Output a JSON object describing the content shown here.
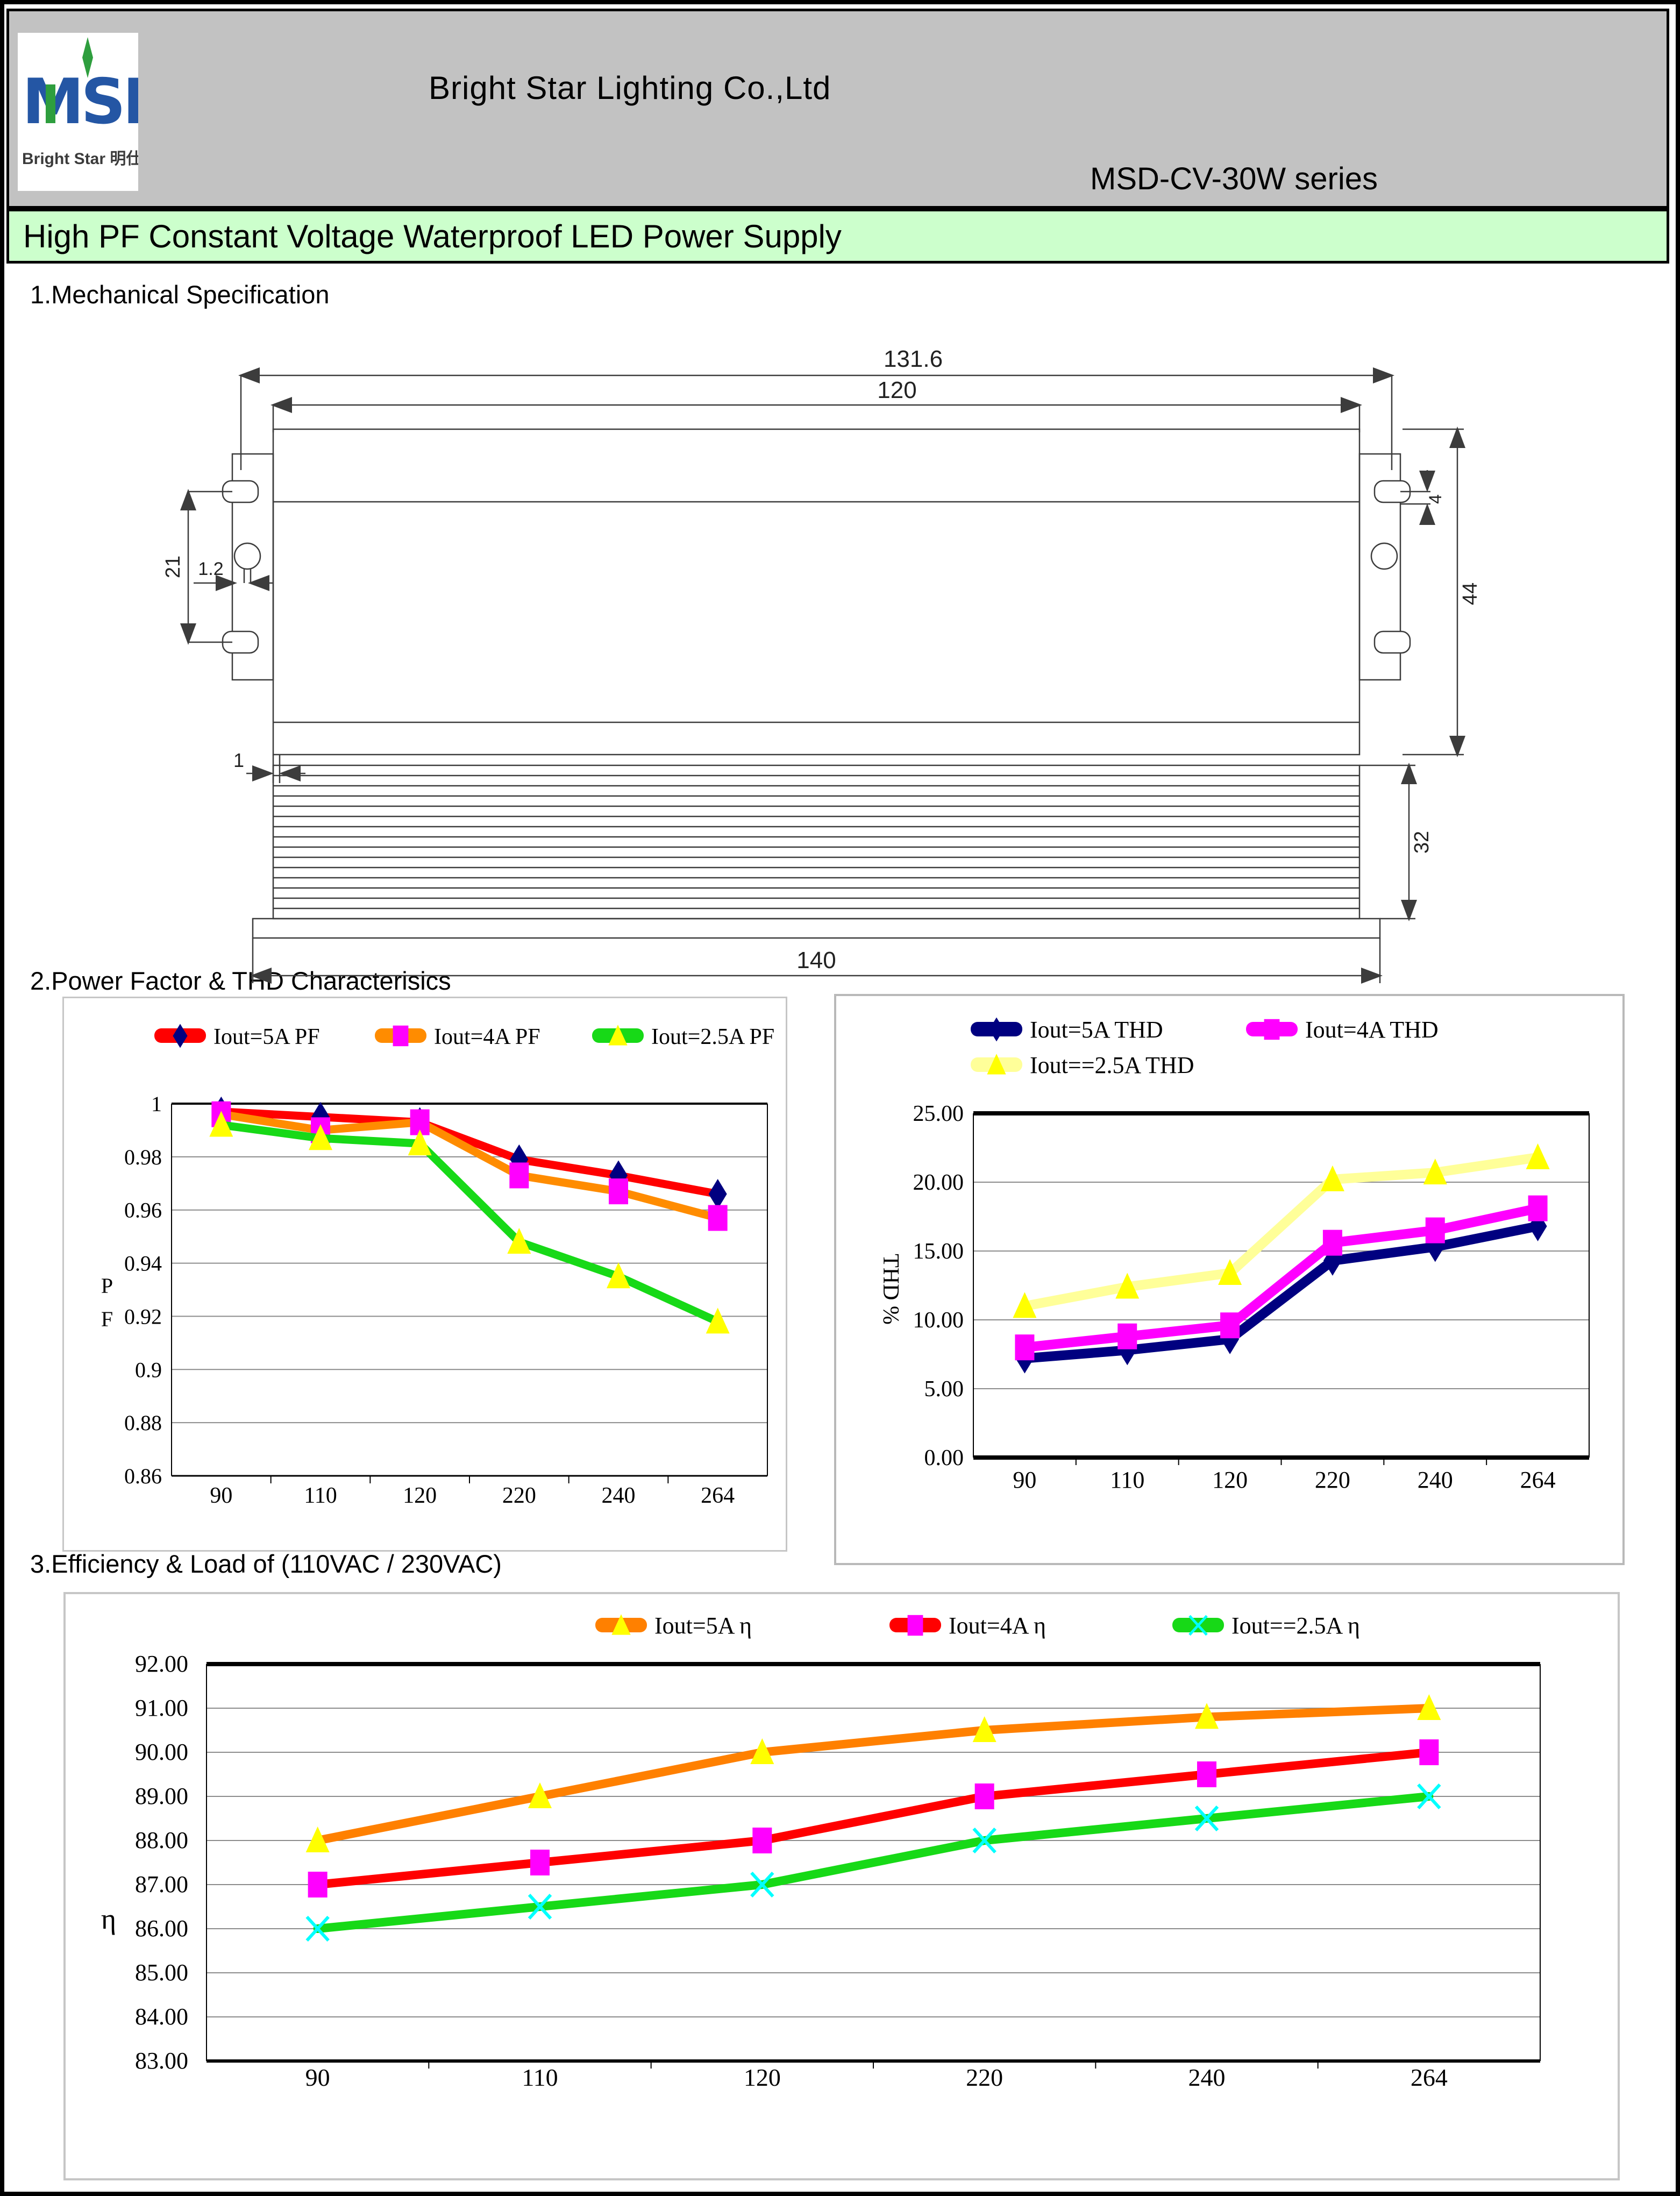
{
  "header": {
    "logo": {
      "msd": "MSD",
      "subtitle": "Bright Star 明仕达"
    },
    "company": "Bright Star Lighting Co.,Ltd",
    "series": "MSD-CV-30W series"
  },
  "banner": {
    "title": "High PF Constant Voltage Waterproof LED Power Supply"
  },
  "sections": {
    "mechanical": "1.Mechanical Specification",
    "pf_thd": "2.Power Factor & THD Characterisics",
    "efficiency": "3.Efficiency & Load of (110VAC / 230VAC)"
  },
  "drawing": {
    "dims": {
      "overall_length": "131.6",
      "body_length": "120",
      "bracket_pitch": "21",
      "slot_width": "1.2",
      "end_gap": "1",
      "hole_offset": "4",
      "unit_width": "44",
      "base_length": "140",
      "unit_height": "32"
    }
  },
  "chart_data": [
    {
      "id": "pf",
      "type": "line",
      "title": "",
      "xlabel": "",
      "ylabel": "P F",
      "categories": [
        "90",
        "110",
        "120",
        "220",
        "240",
        "264"
      ],
      "ylim": [
        0.86,
        1.0
      ],
      "yticks": [
        "1",
        "0.98",
        "0.96",
        "0.94",
        "0.92",
        "0.9",
        "0.88",
        "0.86"
      ],
      "grid": true,
      "legend_position": "top",
      "series": [
        {
          "name": "Iout=5A PF",
          "line_color": "#ff0000",
          "marker": "diamond",
          "marker_color": "#000080",
          "values": [
            0.997,
            0.995,
            0.993,
            0.979,
            0.973,
            0.966
          ]
        },
        {
          "name": "Iout=4A PF",
          "line_color": "#ff8c00",
          "marker": "square",
          "marker_color": "#ff00ff",
          "values": [
            0.996,
            0.99,
            0.993,
            0.973,
            0.967,
            0.957
          ]
        },
        {
          "name": "Iout=2.5A PF",
          "line_color": "#17d917",
          "marker": "triangle",
          "marker_color": "#ffff00",
          "values": [
            0.992,
            0.987,
            0.985,
            0.948,
            0.935,
            0.918
          ]
        }
      ]
    },
    {
      "id": "thd",
      "type": "line",
      "title": "",
      "xlabel": "",
      "ylabel": "THD %",
      "categories": [
        "90",
        "110",
        "120",
        "220",
        "240",
        "264"
      ],
      "ylim": [
        0,
        25
      ],
      "yticks": [
        "25.00",
        "20.00",
        "15.00",
        "10.00",
        "5.00",
        "0.00"
      ],
      "grid": true,
      "legend_position": "top",
      "series": [
        {
          "name": "Iout=5A THD",
          "line_color": "#000080",
          "marker": "diamond",
          "marker_color": "#000080",
          "values": [
            7.2,
            7.8,
            8.6,
            14.3,
            15.3,
            16.8
          ]
        },
        {
          "name": "Iout=4A THD",
          "line_color": "#ff00ff",
          "marker": "square",
          "marker_color": "#ff00ff",
          "values": [
            8.0,
            8.8,
            9.6,
            15.6,
            16.5,
            18.1
          ]
        },
        {
          "name": "Iout==2.5A THD",
          "line_color": "#ffff99",
          "marker": "triangle",
          "marker_color": "#ffff00",
          "values": [
            11.0,
            12.4,
            13.4,
            20.2,
            20.7,
            21.8
          ]
        }
      ]
    },
    {
      "id": "eff",
      "type": "line",
      "title": "",
      "xlabel": "",
      "ylabel": "η",
      "categories": [
        "90",
        "110",
        "120",
        "220",
        "240",
        "264"
      ],
      "ylim": [
        83,
        92
      ],
      "yticks": [
        "92.00",
        "91.00",
        "90.00",
        "89.00",
        "88.00",
        "87.00",
        "86.00",
        "85.00",
        "84.00",
        "83.00"
      ],
      "grid": true,
      "legend_position": "top",
      "series": [
        {
          "name": "Iout=5A η",
          "line_color": "#ff8000",
          "marker": "triangle",
          "marker_color": "#ffff00",
          "values": [
            88.0,
            89.0,
            90.0,
            90.5,
            90.8,
            91.0
          ]
        },
        {
          "name": "Iout=4A η",
          "line_color": "#ff0000",
          "marker": "square",
          "marker_color": "#ff00ff",
          "values": [
            87.0,
            87.5,
            88.0,
            89.0,
            89.5,
            90.0
          ]
        },
        {
          "name": "Iout==2.5A η",
          "line_color": "#17d917",
          "marker": "x",
          "marker_color": "#00ffff",
          "values": [
            86.0,
            86.5,
            87.0,
            88.0,
            88.5,
            89.0
          ]
        }
      ]
    }
  ]
}
